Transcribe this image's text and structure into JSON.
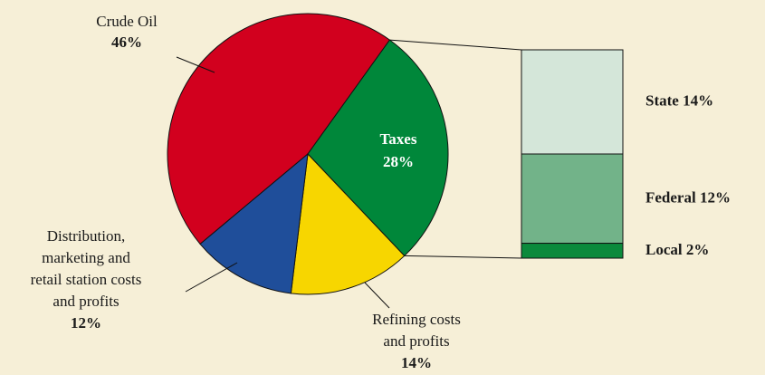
{
  "chart_data": {
    "type": "pie-of-bar",
    "pie": {
      "categories": [
        [
          "Crude Oil"
        ],
        [
          "Taxes"
        ],
        [
          "Refining costs",
          "and profits"
        ],
        [
          "Distribution,",
          "marketing and",
          "retail station costs",
          "and profits"
        ]
      ],
      "values": [
        46,
        28,
        14,
        12
      ],
      "value_labels": [
        "46%",
        "28%",
        "14%",
        "12%"
      ],
      "colors": [
        "#d2001e",
        "#00873a",
        "#f7d600",
        "#1f4e9a"
      ]
    },
    "bar": {
      "categories": [
        "State",
        "Federal",
        "Local"
      ],
      "values": [
        14,
        12,
        2
      ],
      "value_labels": [
        "14%",
        "12%",
        "2%"
      ],
      "colors": [
        "#d4e6d9",
        "#72b389",
        "#0b8a3c"
      ]
    }
  }
}
